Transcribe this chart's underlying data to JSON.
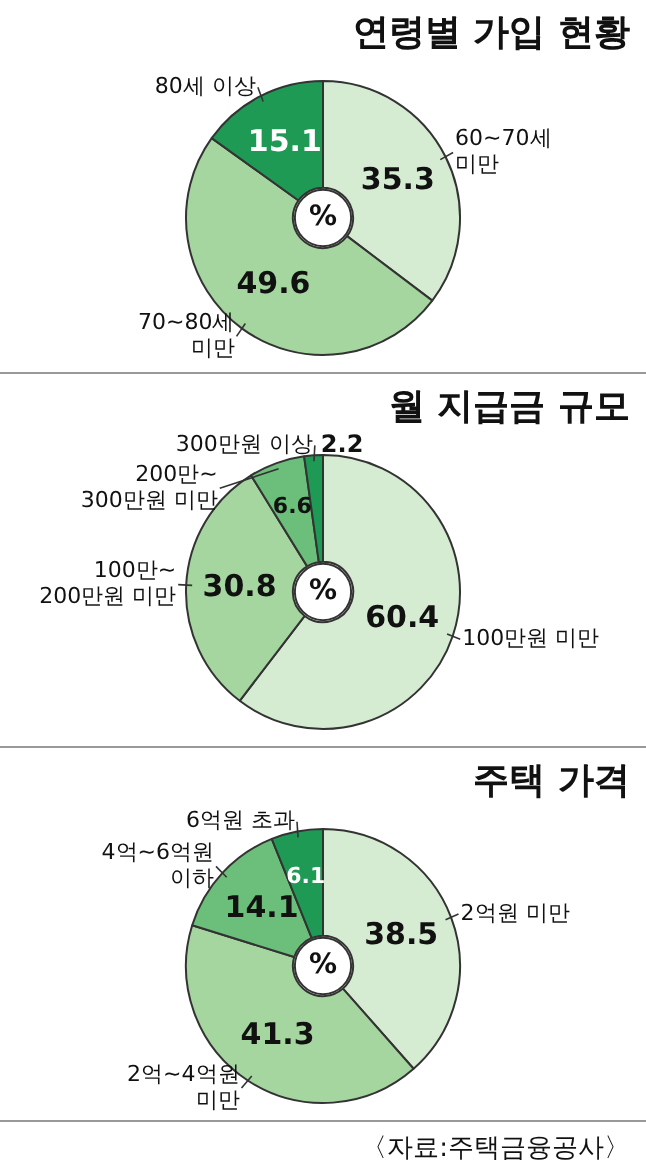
{
  "chart_data": [
    {
      "type": "donut",
      "title": "연령별 가입 현황",
      "categories": [
        "60~70세 미만",
        "70~80세 미만",
        "80세 이상"
      ],
      "values": [
        35.3,
        49.6,
        15.1
      ],
      "colors": [
        "#d5ecd2",
        "#a5d6a0",
        "#1f9a55"
      ],
      "data_labels": true,
      "legend": false,
      "annotations": [
        "%"
      ]
    },
    {
      "type": "donut",
      "title": "월 지급금 규모",
      "categories": [
        "100만원 미만",
        "100만~200만원 미만",
        "200만~300만원 미만",
        "300만원 이상"
      ],
      "values": [
        60.4,
        30.8,
        6.6,
        2.2
      ],
      "colors": [
        "#d5ecd2",
        "#a5d6a0",
        "#6cbf7a",
        "#1f9a55"
      ],
      "data_labels": true,
      "legend": false,
      "annotations": [
        "%"
      ]
    },
    {
      "type": "donut",
      "title": "주택 가격",
      "categories": [
        "2억원 미만",
        "2억~4억원 미만",
        "4억~6억원 이하",
        "6억원 초과"
      ],
      "values": [
        38.5,
        41.3,
        14.1,
        6.1
      ],
      "colors": [
        "#d5ecd2",
        "#a5d6a0",
        "#6cbf7a",
        "#1f9a55"
      ],
      "data_labels": true,
      "legend": false,
      "annotations": [
        "%",
        "〈자료:주택금융공사〉"
      ]
    }
  ]
}
